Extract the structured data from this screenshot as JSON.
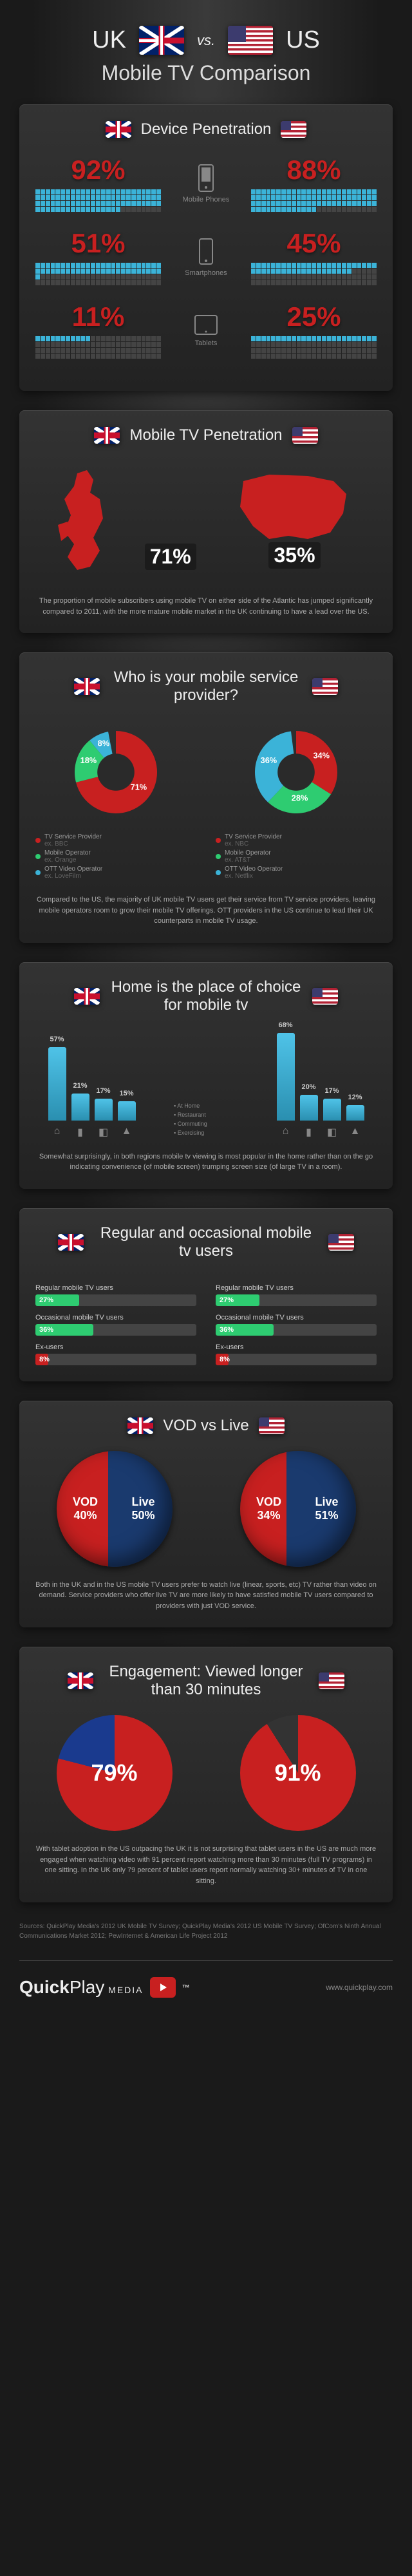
{
  "header": {
    "uk": "UK",
    "vs": "vs.",
    "us": "US",
    "subtitle": "Mobile TV Comparison"
  },
  "device_pen": {
    "title": "Device Penetration",
    "rows": [
      {
        "uk": 92,
        "us": 88,
        "label": "Mobile Phones"
      },
      {
        "uk": 51,
        "us": 45,
        "label": "Smartphones"
      },
      {
        "uk": 11,
        "us": 25,
        "label": "Tablets"
      }
    ]
  },
  "mobile_tv": {
    "title": "Mobile TV Penetration",
    "uk_pct": "71%",
    "us_pct": "35%",
    "desc": "The proportion of mobile subscribers using mobile TV on either side of the Atlantic has jumped significantly compared to 2011, with the more mature mobile market in the UK continuing to have a lead over the US."
  },
  "provider": {
    "title": "Who is your mobile service provider?",
    "uk": {
      "slices": [
        {
          "label": "TV Service Provider",
          "sub": "ex. BBC",
          "pct": 71,
          "color": "#c82020"
        },
        {
          "label": "Mobile Operator",
          "sub": "ex. Orange",
          "pct": 18,
          "color": "#2ecc71"
        },
        {
          "label": "OTT Video Operator",
          "sub": "ex. LoveFilm",
          "pct": 8,
          "color": "#3bb3d8"
        }
      ]
    },
    "us": {
      "slices": [
        {
          "label": "TV Service Provider",
          "sub": "ex. NBC",
          "pct": 34,
          "color": "#c82020"
        },
        {
          "label": "Mobile Operator",
          "sub": "ex. AT&T",
          "pct": 28,
          "color": "#2ecc71"
        },
        {
          "label": "OTT Video Operator",
          "sub": "ex. Netflix",
          "pct": 36,
          "color": "#3bb3d8"
        }
      ]
    },
    "desc": "Compared to the US, the majority of UK mobile TV users get their service from TV service providers, leaving mobile operators room to grow their mobile TV offerings. OTT providers in the US continue to lead their UK counterparts in mobile TV usage."
  },
  "home": {
    "title": "Home is the place of choice for mobile tv",
    "categories": [
      "At Home",
      "Restaurant",
      "Commuting",
      "Exercising"
    ],
    "uk": [
      57,
      21,
      17,
      15
    ],
    "us": [
      68,
      20,
      17,
      12
    ],
    "color": "#3bb3d8",
    "desc": "Somewhat surprisingly, in both regions mobile tv viewing is most popular in the home rather than on the go indicating convenience (of mobile screen) trumping screen size (of large TV in a room)."
  },
  "regular": {
    "title": "Regular and occasional mobile tv users",
    "labels": [
      "Regular mobile TV users",
      "Occasional mobile TV users",
      "Ex-users"
    ],
    "uk": [
      27,
      36,
      8
    ],
    "us": [
      27,
      36,
      8
    ],
    "colors": [
      "#2ecc71",
      "#2ecc71",
      "#c82020"
    ]
  },
  "vod": {
    "title": "VOD vs Live",
    "uk": {
      "vod": 40,
      "live": 50
    },
    "us": {
      "vod": 34,
      "live": 51
    },
    "vod_color": "#c82020",
    "live_color": "#1a3a6e",
    "vod_label": "VOD",
    "live_label": "Live",
    "desc": "Both in the UK and in the US mobile TV users prefer to watch live (linear, sports, etc) TV rather than video on demand. Service providers who offer live TV are more likely to have satisfied mobile TV users compared to providers with just VOD service."
  },
  "engagement": {
    "title": "Engagement: Viewed longer than 30 minutes",
    "uk": 79,
    "us": 91,
    "uk_colors": [
      "#c82020",
      "#1a3a8e"
    ],
    "us_colors": [
      "#c82020",
      "#333"
    ],
    "desc": "With tablet adoption in the US outpacing the UK it is not surprising that tablet users in the US are much more engaged when watching video with 91 percent report watching more than 30 minutes (full TV programs) in one sitting. In the UK only 79 percent of tablet users report normally watching 30+ minutes of TV in one sitting."
  },
  "sources": "Sources: QuickPlay Media's 2012 UK Mobile TV Survey; QuickPlay Media's 2012 US Mobile TV Survey; OfCom's Ninth Annual Communications Market 2012;  PewInternet & American Life Project 2012",
  "footer": {
    "brand1": "Quick",
    "brand2": "Play",
    "brand3": " MEDIA",
    "tm": "™",
    "url": "www.quickplay.com"
  }
}
